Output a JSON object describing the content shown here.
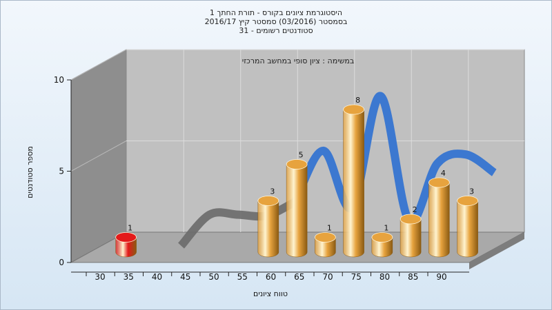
{
  "chart_data": {
    "type": "bar",
    "title_lines": [
      "היסטוגרמת ציונים בקורס - תורת החתך 1",
      "בסמסטר  (03/2016)  סמסטר קיץ 2016/17",
      "31 - סטודנטים רשומים"
    ],
    "subtitle": "במשימה : ציון סופי במחשב המרכזי",
    "xlabel": "טווח ציונים",
    "ylabel": "מספר סטודנטים",
    "x_ticks": [
      "30",
      "35",
      "40",
      "45",
      "50",
      "55",
      "60",
      "65",
      "70",
      "75",
      "80",
      "85",
      "90"
    ],
    "y_ticks": [
      "0",
      "5",
      "10"
    ],
    "ylim": [
      0,
      10
    ],
    "bars": [
      {
        "x": 32.5,
        "value": 1,
        "label": "1",
        "color": "#e31a1a"
      },
      {
        "x": 57.5,
        "value": 3,
        "label": "3",
        "color": "#e7a33e"
      },
      {
        "x": 62.5,
        "value": 5,
        "label": "5",
        "color": "#e7a33e"
      },
      {
        "x": 67.5,
        "value": 1,
        "label": "1",
        "color": "#e7a33e"
      },
      {
        "x": 72.5,
        "value": 8,
        "label": "8",
        "color": "#e7a33e"
      },
      {
        "x": 77.5,
        "value": 1,
        "label": "1",
        "color": "#e7a33e"
      },
      {
        "x": 82.5,
        "value": 2,
        "label": "2",
        "color": "#e7a33e"
      },
      {
        "x": 87.5,
        "value": 4,
        "label": "4",
        "color": "#e7a33e"
      },
      {
        "x": 92.5,
        "value": 3,
        "label": "3",
        "color": "#e7a33e"
      }
    ],
    "distribution_curve": {
      "x": [
        40,
        45,
        50,
        55,
        60,
        65,
        70,
        75,
        80,
        85,
        90,
        95
      ],
      "values": [
        0.2,
        1.9,
        1.9,
        1.85,
        2.6,
        5.4,
        2.3,
        8.4,
        1.6,
        4.7,
        5.2,
        4.2
      ],
      "colors": [
        "#6a6a6a",
        "#3c78d0"
      ]
    },
    "grid": true,
    "colors": {
      "wall_back": "#c0c0c0",
      "wall_side": "#8e8e8e",
      "floor": "#a9a9a9"
    }
  }
}
